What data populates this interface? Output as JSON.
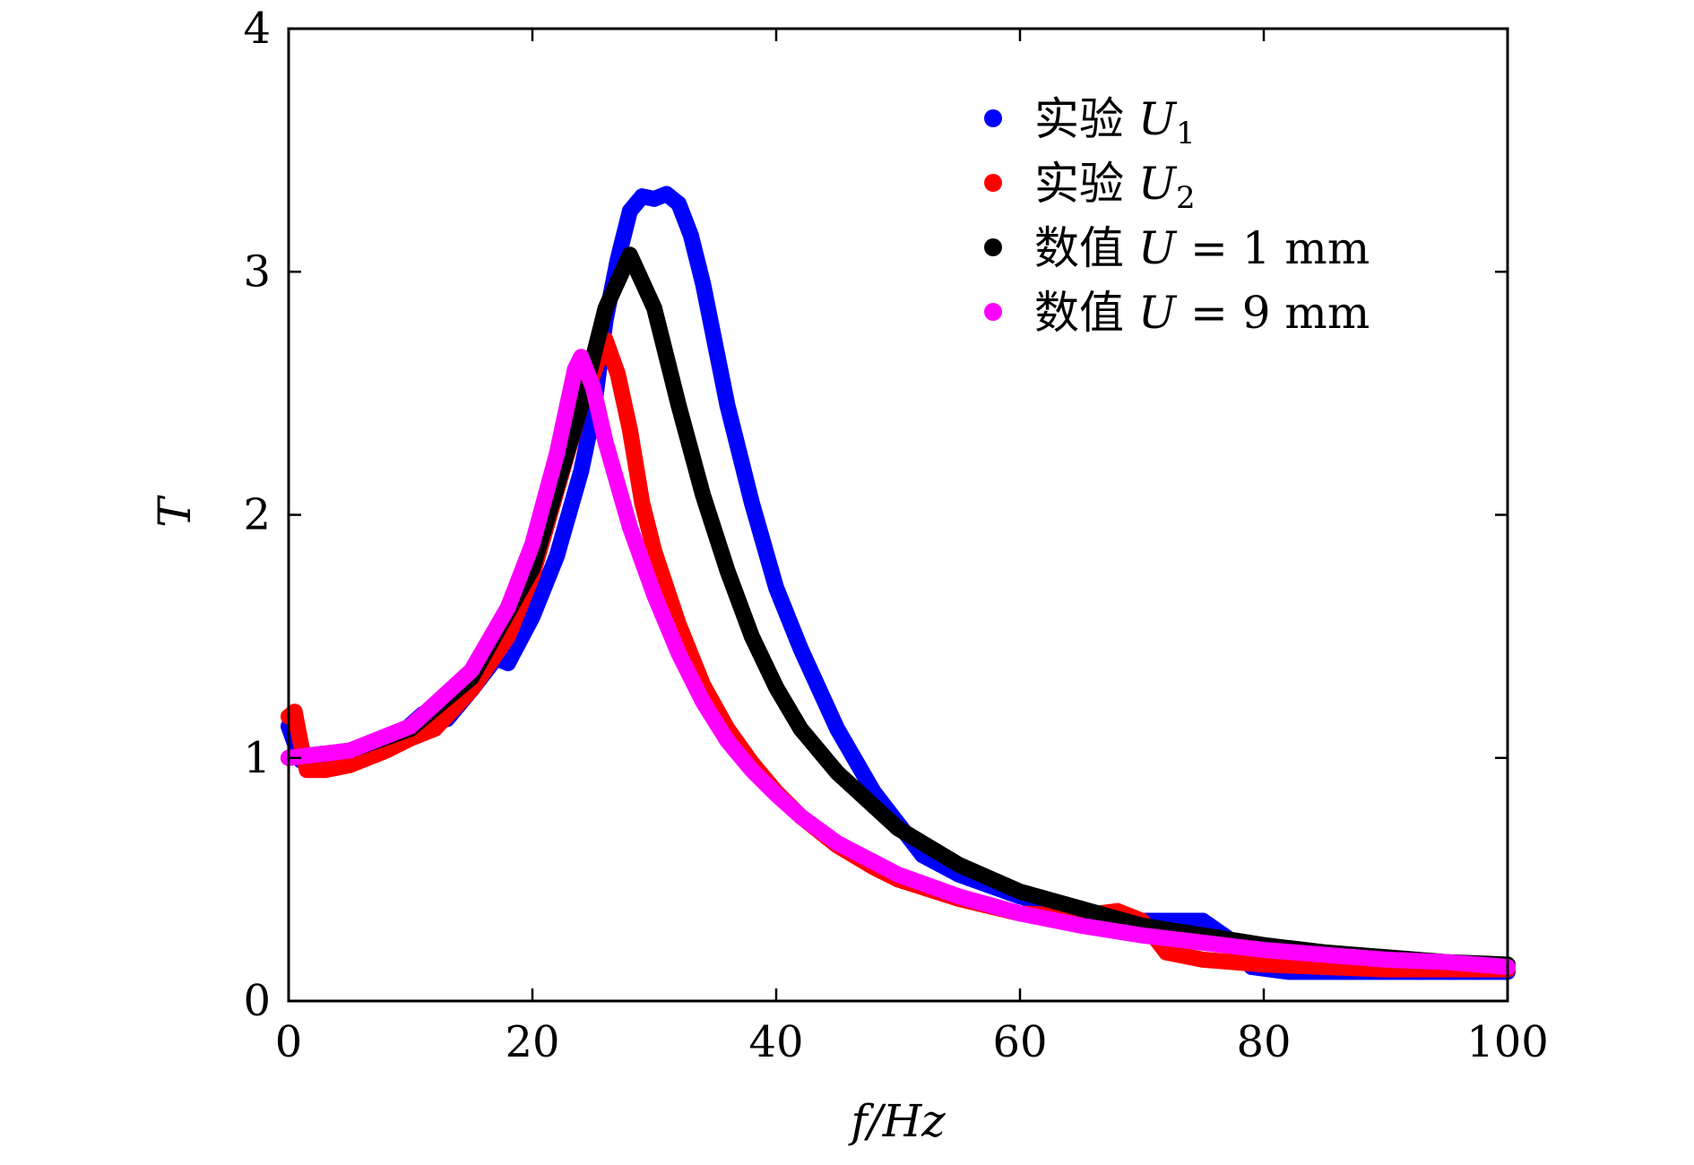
{
  "chart_data": {
    "type": "scatter",
    "title": "",
    "xlabel": "f/Hz",
    "ylabel": "T",
    "xlim": [
      0,
      100
    ],
    "ylim": [
      0,
      4
    ],
    "x_ticks": [
      0,
      20,
      40,
      60,
      80,
      100
    ],
    "y_ticks": [
      0,
      1,
      2,
      3,
      4
    ],
    "x_tick_labels": [
      "0",
      "20",
      "40",
      "60",
      "80",
      "100"
    ],
    "y_tick_labels": [
      "0",
      "1",
      "2",
      "3",
      "4"
    ],
    "grid": false,
    "legend_position": "top-right",
    "series": [
      {
        "name": "实验 U₁",
        "color": "#0000ff",
        "points": [
          [
            0,
            1.13
          ],
          [
            1,
            0.99
          ],
          [
            3,
            1.0
          ],
          [
            5,
            1.01
          ],
          [
            7,
            1.04
          ],
          [
            9,
            1.09
          ],
          [
            11,
            1.18
          ],
          [
            13,
            1.16
          ],
          [
            15,
            1.28
          ],
          [
            17,
            1.41
          ],
          [
            18,
            1.39
          ],
          [
            20,
            1.58
          ],
          [
            22,
            1.83
          ],
          [
            24,
            2.18
          ],
          [
            25,
            2.42
          ],
          [
            26,
            2.8
          ],
          [
            27,
            3.05
          ],
          [
            28,
            3.25
          ],
          [
            29,
            3.31
          ],
          [
            30,
            3.3
          ],
          [
            31,
            3.32
          ],
          [
            32,
            3.28
          ],
          [
            33,
            3.15
          ],
          [
            34,
            2.95
          ],
          [
            35,
            2.7
          ],
          [
            36,
            2.45
          ],
          [
            38,
            2.05
          ],
          [
            40,
            1.7
          ],
          [
            42,
            1.45
          ],
          [
            45,
            1.12
          ],
          [
            48,
            0.86
          ],
          [
            50,
            0.73
          ],
          [
            52,
            0.6
          ],
          [
            55,
            0.52
          ],
          [
            60,
            0.43
          ],
          [
            65,
            0.37
          ],
          [
            70,
            0.33
          ],
          [
            73,
            0.33
          ],
          [
            75,
            0.33
          ],
          [
            77,
            0.26
          ],
          [
            79,
            0.14
          ],
          [
            82,
            0.12
          ],
          [
            90,
            0.12
          ],
          [
            100,
            0.12
          ]
        ]
      },
      {
        "name": "实验 U₂",
        "color": "#ff0000",
        "points": [
          [
            0,
            1.17
          ],
          [
            0.5,
            1.19
          ],
          [
            1,
            1.06
          ],
          [
            1.5,
            0.95
          ],
          [
            3,
            0.95
          ],
          [
            5,
            0.97
          ],
          [
            8,
            1.03
          ],
          [
            10,
            1.08
          ],
          [
            12,
            1.12
          ],
          [
            15,
            1.28
          ],
          [
            18,
            1.5
          ],
          [
            20,
            1.75
          ],
          [
            22,
            2.1
          ],
          [
            24,
            2.45
          ],
          [
            25,
            2.58
          ],
          [
            26,
            2.72
          ],
          [
            27,
            2.58
          ],
          [
            28,
            2.35
          ],
          [
            29,
            2.05
          ],
          [
            30,
            1.85
          ],
          [
            32,
            1.55
          ],
          [
            34,
            1.3
          ],
          [
            36,
            1.12
          ],
          [
            38,
            0.98
          ],
          [
            40,
            0.86
          ],
          [
            42,
            0.76
          ],
          [
            45,
            0.64
          ],
          [
            48,
            0.55
          ],
          [
            50,
            0.5
          ],
          [
            55,
            0.42
          ],
          [
            60,
            0.36
          ],
          [
            65,
            0.35
          ],
          [
            68,
            0.37
          ],
          [
            70,
            0.33
          ],
          [
            72,
            0.2
          ],
          [
            75,
            0.17
          ],
          [
            80,
            0.15
          ],
          [
            90,
            0.13
          ],
          [
            100,
            0.13
          ]
        ]
      },
      {
        "name": "数值 U = 1 mm",
        "color": "#000000",
        "points": [
          [
            0,
            1.0
          ],
          [
            5,
            1.03
          ],
          [
            10,
            1.12
          ],
          [
            15,
            1.33
          ],
          [
            20,
            1.78
          ],
          [
            24,
            2.45
          ],
          [
            26,
            2.85
          ],
          [
            28,
            3.07
          ],
          [
            30,
            2.85
          ],
          [
            32,
            2.45
          ],
          [
            34,
            2.08
          ],
          [
            36,
            1.77
          ],
          [
            38,
            1.5
          ],
          [
            40,
            1.29
          ],
          [
            42,
            1.12
          ],
          [
            45,
            0.94
          ],
          [
            50,
            0.71
          ],
          [
            55,
            0.56
          ],
          [
            60,
            0.45
          ],
          [
            65,
            0.38
          ],
          [
            70,
            0.31
          ],
          [
            75,
            0.27
          ],
          [
            80,
            0.23
          ],
          [
            85,
            0.2
          ],
          [
            90,
            0.18
          ],
          [
            95,
            0.16
          ],
          [
            100,
            0.15
          ]
        ]
      },
      {
        "name": "数值 U = 9 mm",
        "color": "#ff00ff",
        "points": [
          [
            0,
            1.0
          ],
          [
            5,
            1.03
          ],
          [
            10,
            1.13
          ],
          [
            15,
            1.36
          ],
          [
            18,
            1.62
          ],
          [
            20,
            1.88
          ],
          [
            22,
            2.25
          ],
          [
            23.5,
            2.6
          ],
          [
            24,
            2.65
          ],
          [
            25,
            2.52
          ],
          [
            26,
            2.3
          ],
          [
            28,
            1.95
          ],
          [
            30,
            1.67
          ],
          [
            32,
            1.43
          ],
          [
            34,
            1.23
          ],
          [
            36,
            1.07
          ],
          [
            38,
            0.95
          ],
          [
            40,
            0.85
          ],
          [
            42,
            0.76
          ],
          [
            45,
            0.65
          ],
          [
            50,
            0.52
          ],
          [
            55,
            0.43
          ],
          [
            60,
            0.36
          ],
          [
            65,
            0.31
          ],
          [
            70,
            0.27
          ],
          [
            75,
            0.24
          ],
          [
            80,
            0.21
          ],
          [
            85,
            0.19
          ],
          [
            90,
            0.17
          ],
          [
            95,
            0.16
          ],
          [
            100,
            0.14
          ]
        ]
      }
    ],
    "legend": [
      {
        "prefix": "实验",
        "var": "U",
        "sub": "1",
        "suffix": ""
      },
      {
        "prefix": "实验",
        "var": "U",
        "sub": "2",
        "suffix": ""
      },
      {
        "prefix": "数值",
        "var": "U",
        "sub": "",
        "suffix": " = 1 mm"
      },
      {
        "prefix": "数值",
        "var": "U",
        "sub": "",
        "suffix": " = 9 mm"
      }
    ]
  }
}
